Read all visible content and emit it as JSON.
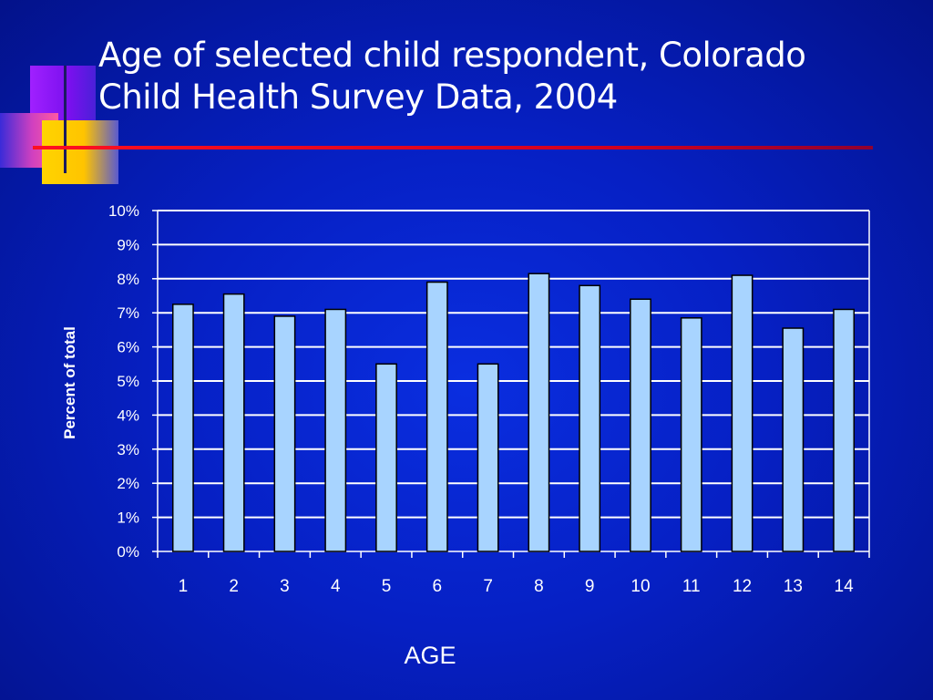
{
  "slide": {
    "title_line1": "Age of selected child respondent, Colorado",
    "title_line2": "Child Health Survey Data, 2004"
  },
  "colors": {
    "background": "#0620c4",
    "bar_fill": "#a8d4ff",
    "gridline": "#ffffff",
    "title_rule": "#e0001a"
  },
  "chart_data": {
    "type": "bar",
    "categories": [
      "1",
      "2",
      "3",
      "4",
      "5",
      "6",
      "7",
      "8",
      "9",
      "10",
      "11",
      "12",
      "13",
      "14"
    ],
    "values": [
      7.25,
      7.55,
      6.9,
      7.1,
      5.5,
      7.9,
      5.5,
      8.15,
      7.8,
      7.4,
      6.85,
      8.1,
      6.55,
      7.1
    ],
    "value_unit": "percent",
    "ylim": [
      0,
      10
    ],
    "yticks": [
      "0%",
      "1%",
      "2%",
      "3%",
      "4%",
      "5%",
      "6%",
      "7%",
      "8%",
      "9%",
      "10%"
    ],
    "xlabel": "AGE",
    "ylabel": "Percent of total",
    "grid": true,
    "legend": "none"
  }
}
